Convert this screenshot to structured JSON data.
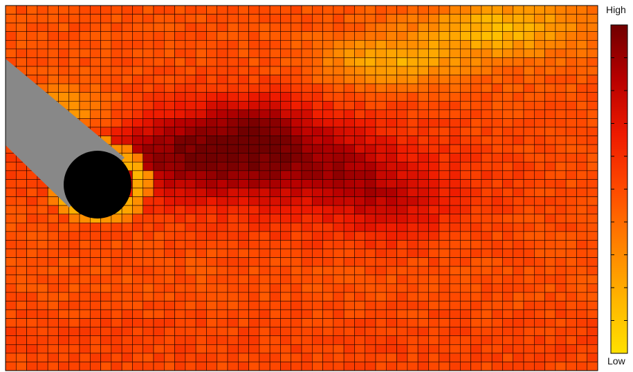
{
  "chart_data": {
    "type": "heatmap",
    "grid": {
      "columns": 56,
      "rows": 42
    },
    "value_range": [
      0,
      1
    ],
    "colorbar": {
      "high_label": "High",
      "low_label": "Low",
      "stops": [
        "#ffe000",
        "#ffb400",
        "#ff8000",
        "#ff4a00",
        "#ee1a00",
        "#b80000",
        "#700000"
      ],
      "tick_count": 10
    },
    "hotspot": {
      "col": 18.5,
      "row": 16.5,
      "peak": 0.96
    },
    "secondary_hotspots": [
      {
        "col": 36,
        "row": 23,
        "value": 0.7
      },
      {
        "col": 32,
        "row": 19,
        "value": 0.68
      },
      {
        "col": 24,
        "row": 13,
        "value": 0.7
      }
    ],
    "low_regions": [
      {
        "col": 36,
        "row": 6,
        "value": 0.22
      },
      {
        "col": 46,
        "row": 2,
        "value": 0.22
      },
      {
        "col": 4,
        "row": 12,
        "value": 0.18
      }
    ],
    "overlays": {
      "probe_color": "#888888",
      "probe_tip_color": "#000000"
    }
  }
}
